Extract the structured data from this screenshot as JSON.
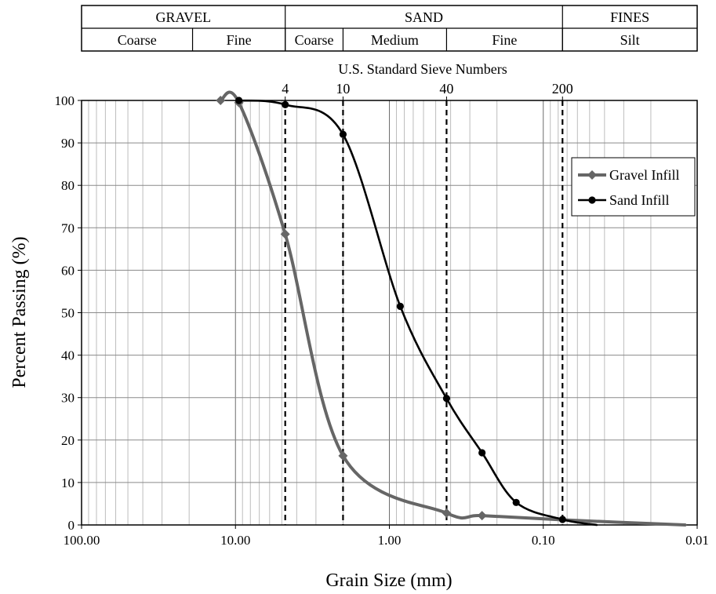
{
  "chart_data": {
    "type": "line",
    "xscale": "log",
    "x_reversed": true,
    "xlim": [
      100,
      0.01
    ],
    "ylim": [
      0,
      100
    ],
    "yticks": [
      0,
      10,
      20,
      30,
      40,
      50,
      60,
      70,
      80,
      90,
      100
    ],
    "xtick_labels": [
      "100.00",
      "10.00",
      "1.00",
      "0.10",
      "0.01"
    ],
    "xlabel": "Grain Size (mm)",
    "ylabel": "Percent  Passing (%)",
    "grid": true,
    "legend_position": "upper-right",
    "sieve_axis": {
      "title": "U.S. Standard Sieve Numbers",
      "sieves": [
        {
          "label": "4",
          "size_mm": 4.75
        },
        {
          "label": "10",
          "size_mm": 2.0
        },
        {
          "label": "40",
          "size_mm": 0.425
        },
        {
          "label": "200",
          "size_mm": 0.075
        }
      ]
    },
    "classification": {
      "groups": [
        {
          "label": "GRAVEL",
          "from": 100,
          "to": 4.75
        },
        {
          "label": "SAND",
          "from": 4.75,
          "to": 0.075
        },
        {
          "label": "FINES",
          "from": 0.075,
          "to": 0.01
        }
      ],
      "subgroups": [
        {
          "label": "Coarse",
          "from": 100,
          "to": 19
        },
        {
          "label": "Fine",
          "from": 19,
          "to": 4.75
        },
        {
          "label": "Coarse",
          "from": 4.75,
          "to": 2.0
        },
        {
          "label": "Medium",
          "from": 2.0,
          "to": 0.425
        },
        {
          "label": "Fine",
          "from": 0.425,
          "to": 0.075
        },
        {
          "label": "Silt",
          "from": 0.075,
          "to": 0.01
        }
      ]
    },
    "series": [
      {
        "name": "Gravel Infill",
        "color": "#666666",
        "marker": "diamond",
        "points": [
          {
            "x": 12.5,
            "y": 100
          },
          {
            "x": 9.5,
            "y": 99.5
          },
          {
            "x": 4.75,
            "y": 68.5
          },
          {
            "x": 2.0,
            "y": 16.3
          },
          {
            "x": 0.425,
            "y": 2.8
          },
          {
            "x": 0.25,
            "y": 2.2
          },
          {
            "x": 0.075,
            "y": 1.2
          },
          {
            "x": 0.012,
            "y": 0
          }
        ],
        "marker_indices": [
          0,
          1,
          2,
          3,
          4,
          5
        ]
      },
      {
        "name": "Sand Infill",
        "color": "#000000",
        "marker": "circle",
        "points": [
          {
            "x": 9.5,
            "y": 100
          },
          {
            "x": 4.75,
            "y": 99
          },
          {
            "x": 2.0,
            "y": 92
          },
          {
            "x": 0.85,
            "y": 51.5
          },
          {
            "x": 0.425,
            "y": 29.8
          },
          {
            "x": 0.25,
            "y": 17
          },
          {
            "x": 0.15,
            "y": 5.3
          },
          {
            "x": 0.075,
            "y": 1.3
          },
          {
            "x": 0.045,
            "y": 0
          }
        ],
        "marker_indices": [
          0,
          1,
          2,
          3,
          4,
          5,
          6,
          7
        ]
      }
    ]
  }
}
